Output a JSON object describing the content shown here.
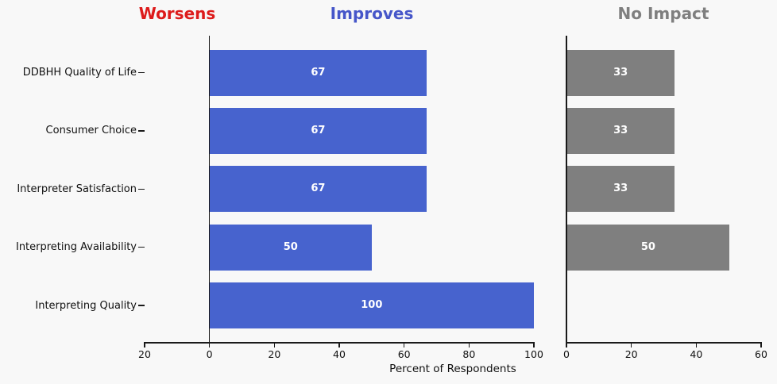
{
  "figure": {
    "background_color": "#f8f8f8",
    "text_color": "#111111",
    "axis_color": "#1a1a1a"
  },
  "panel_titles": [
    {
      "label": "Worsens",
      "color": "#dd1b1b"
    },
    {
      "label": "Improves",
      "color": "#4656c9"
    },
    {
      "label": "No Impact",
      "color": "#7f7f7f"
    }
  ],
  "chart_data": {
    "type": "bar",
    "orientation": "horizontal",
    "xlabel": "Percent of Respondents",
    "grid": false,
    "legend_position": "none (colored panel titles act as legend)",
    "categories": [
      "DDBHH Quality of Life",
      "Consumer Choice",
      "Interpreter Satisfaction",
      "Interpreting Availability",
      "Interpreting Quality"
    ],
    "series": [
      {
        "name": "Worsens",
        "panel": "left",
        "direction": "negative",
        "color": "#dd1b1b",
        "values": [
          0,
          0,
          0,
          0,
          0
        ]
      },
      {
        "name": "Improves",
        "panel": "left",
        "direction": "positive",
        "color": "#4763ce",
        "values": [
          67,
          67,
          67,
          50,
          100
        ]
      },
      {
        "name": "No Impact",
        "panel": "right",
        "direction": "positive",
        "color": "#7f7f7f",
        "values": [
          33,
          33,
          33,
          50,
          0
        ]
      }
    ],
    "bar_value_label_color": "#ffffff",
    "left_panel": {
      "xlim": [
        -20,
        100
      ],
      "tick_values": [
        -20,
        0,
        20,
        40,
        60,
        80,
        100
      ],
      "tick_labels": [
        "20",
        "0",
        "20",
        "40",
        "60",
        "80",
        "100"
      ]
    },
    "right_panel": {
      "xlim": [
        0,
        60
      ],
      "tick_values": [
        0,
        20,
        40,
        60
      ],
      "tick_labels": [
        "0",
        "20",
        "40",
        "60"
      ]
    }
  }
}
